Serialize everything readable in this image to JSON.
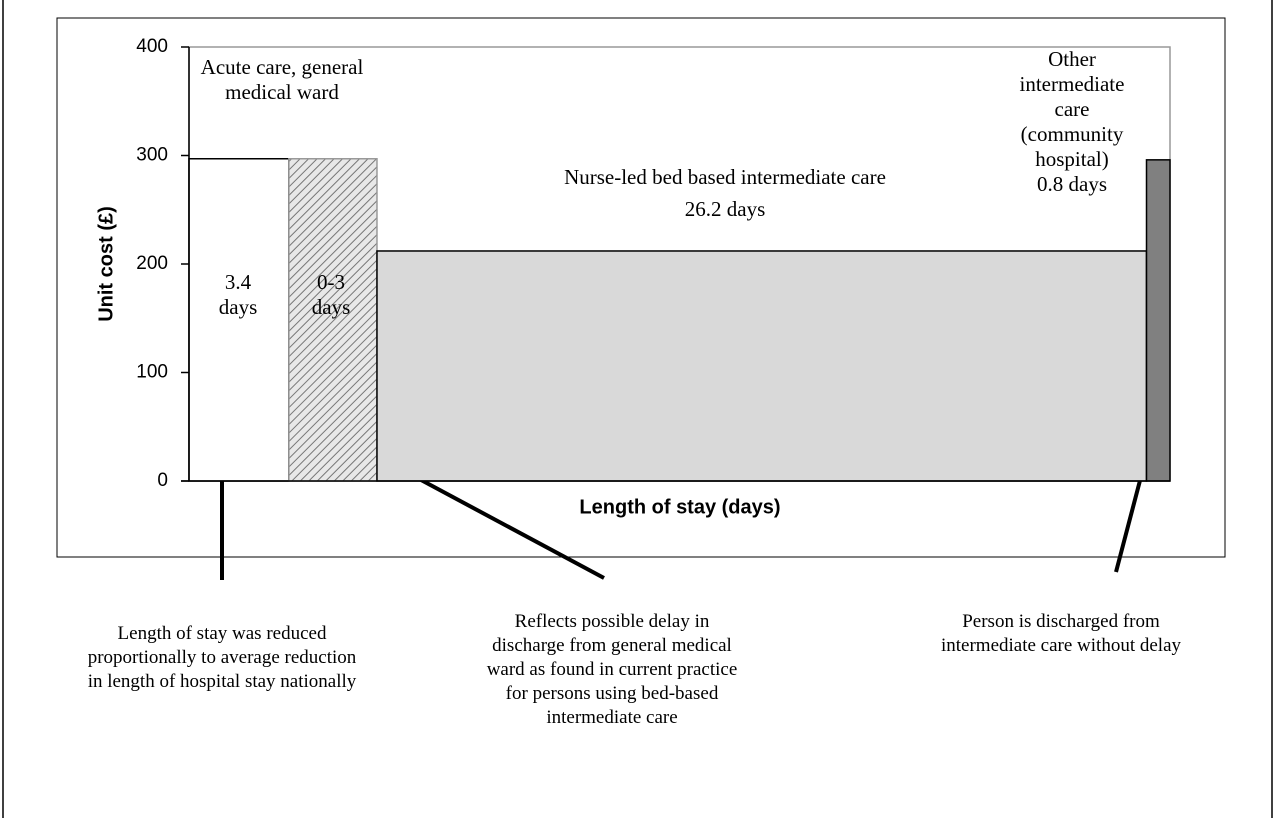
{
  "chart_data": {
    "type": "bar",
    "categories": [
      "Acute care, general medical ward",
      null,
      "Nurse-led bed based intermediate care",
      "Other intermediate care (community hospital)"
    ],
    "duration_labels": [
      "3.4 days",
      "0-3 days",
      "26.2 days",
      "0.8 days"
    ],
    "widths": [
      3.4,
      3,
      26.2,
      0.8
    ],
    "values": [
      297,
      297,
      212,
      296
    ],
    "colors": [
      "#ffffff",
      "hatch",
      "#d9d9d9",
      "#808080"
    ],
    "xlim": [
      0,
      33.4
    ],
    "ylim": [
      0,
      400
    ],
    "yticks": [
      0,
      100,
      200,
      300,
      400
    ],
    "y_label": "Unit cost (£)",
    "x_label": "Length of stay (days)",
    "annotations": [
      "Length of stay was reduced proportionally to average reduction in length of hospital stay nationally",
      "Reflects possible delay in discharge from general medical ward as found in current practice for persons using bed-based intermediate care",
      "Person is discharged from intermediate care without delay"
    ]
  }
}
